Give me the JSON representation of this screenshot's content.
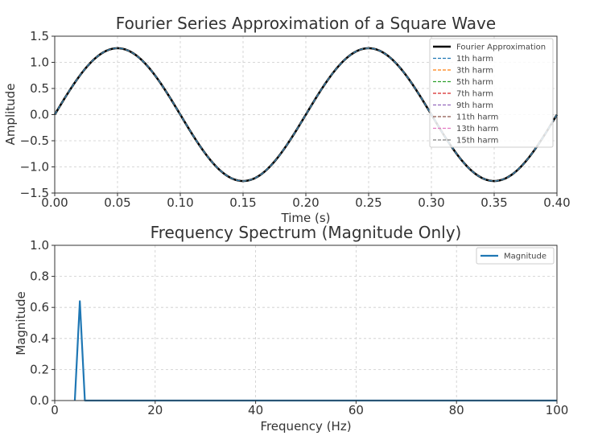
{
  "colors": {
    "fourier": "#000000",
    "magnitude": "#1f77b4",
    "harmonics": [
      "#1f77b4",
      "#ff7f0e",
      "#2ca02c",
      "#d62728",
      "#9467bd",
      "#8c564b",
      "#e377c2",
      "#7f7f7f"
    ]
  },
  "chart_data": [
    {
      "type": "line",
      "title": "Fourier Series Approximation of a Square Wave",
      "xlabel": "Time (s)",
      "ylabel": "Amplitude",
      "xlim": [
        0.0,
        0.4
      ],
      "ylim": [
        -1.5,
        1.5
      ],
      "xticks": [
        0.0,
        0.05,
        0.1,
        0.15,
        0.2,
        0.25,
        0.3,
        0.35,
        0.4
      ],
      "xtick_labels": [
        "0.00",
        "0.05",
        "0.10",
        "0.15",
        "0.20",
        "0.25",
        "0.30",
        "0.35",
        "0.40"
      ],
      "yticks": [
        -1.5,
        -1.0,
        -0.5,
        0.0,
        0.5,
        1.0,
        1.5
      ],
      "ytick_labels": [
        "−1.5",
        "−1.0",
        "−0.5",
        "0.0",
        "0.5",
        "1.0",
        "1.5"
      ],
      "grid": true,
      "legend_position": "top-right",
      "frequency_hz": 5,
      "peak_amplitude": 1.27,
      "series": [
        {
          "name": "Fourier Approximation",
          "style": "solid"
        },
        {
          "name": "1th harm",
          "style": "dashed"
        },
        {
          "name": "3th harm",
          "style": "dashed"
        },
        {
          "name": "5th harm",
          "style": "dashed"
        },
        {
          "name": "7th harm",
          "style": "dashed"
        },
        {
          "name": "9th harm",
          "style": "dashed"
        },
        {
          "name": "11th harm",
          "style": "dashed"
        },
        {
          "name": "13th harm",
          "style": "dashed"
        },
        {
          "name": "15th harm",
          "style": "dashed"
        }
      ]
    },
    {
      "type": "line",
      "title": "Frequency Spectrum (Magnitude Only)",
      "xlabel": "Frequency (Hz)",
      "ylabel": "Magnitude",
      "xlim": [
        0,
        100
      ],
      "ylim": [
        0.0,
        1.0
      ],
      "xticks": [
        0,
        20,
        40,
        60,
        80,
        100
      ],
      "xtick_labels": [
        "0",
        "20",
        "40",
        "60",
        "80",
        "100"
      ],
      "yticks": [
        0.0,
        0.2,
        0.4,
        0.6,
        0.8,
        1.0
      ],
      "ytick_labels": [
        "0.0",
        "0.2",
        "0.4",
        "0.6",
        "0.8",
        "1.0"
      ],
      "grid": true,
      "legend_position": "top-right",
      "series": [
        {
          "name": "Magnitude",
          "x": [
            4,
            5,
            6,
            7,
            100
          ],
          "y": [
            0.0,
            0.64,
            0.0,
            0.0,
            0.0
          ]
        }
      ]
    }
  ]
}
